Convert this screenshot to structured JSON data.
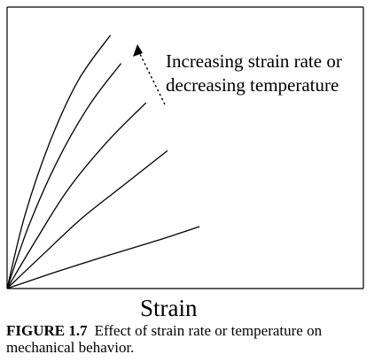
{
  "chart_data": {
    "type": "line",
    "title": "",
    "xlabel": "Strain",
    "ylabel": "",
    "xlim": [
      0,
      1
    ],
    "ylim": [
      0,
      1
    ],
    "grid": false,
    "legend": "none",
    "annotation": {
      "lines": [
        "Increasing strain rate or",
        "decreasing temperature"
      ]
    },
    "series": [
      {
        "points": [
          [
            0,
            0
          ],
          [
            0.05,
            0.26
          ],
          [
            0.12,
            0.52
          ],
          [
            0.2,
            0.74
          ],
          [
            0.29,
            0.9
          ]
        ]
      },
      {
        "points": [
          [
            0,
            0
          ],
          [
            0.06,
            0.22
          ],
          [
            0.14,
            0.45
          ],
          [
            0.23,
            0.65
          ],
          [
            0.32,
            0.8
          ]
        ]
      },
      {
        "points": [
          [
            0,
            0
          ],
          [
            0.08,
            0.17
          ],
          [
            0.17,
            0.35
          ],
          [
            0.28,
            0.52
          ],
          [
            0.39,
            0.66
          ]
        ]
      },
      {
        "points": [
          [
            0,
            0
          ],
          [
            0.1,
            0.12
          ],
          [
            0.21,
            0.25
          ],
          [
            0.33,
            0.37
          ],
          [
            0.45,
            0.49
          ]
        ]
      },
      {
        "points": [
          [
            0,
            0
          ],
          [
            0.14,
            0.06
          ],
          [
            0.29,
            0.12
          ],
          [
            0.42,
            0.17
          ],
          [
            0.54,
            0.22
          ]
        ]
      }
    ]
  },
  "caption": {
    "label": "FIGURE 1.7",
    "text": "Effect of strain rate or temperature on mechanical behavior."
  }
}
